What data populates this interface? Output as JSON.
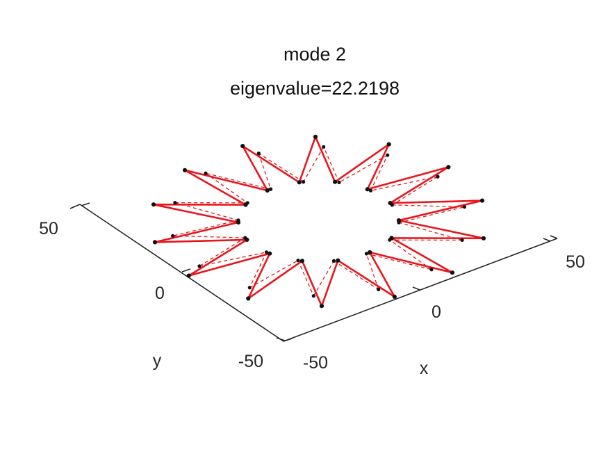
{
  "chart_data": {
    "type": "3d-line",
    "title": "mode 2",
    "subtitle": "eigenvalue=22.2198",
    "xlabel": "x",
    "ylabel": "y",
    "x_ticks": [
      "-50",
      "0",
      "50"
    ],
    "y_ticks": [
      "-50",
      "0",
      "50"
    ],
    "xlim": [
      -85,
      85
    ],
    "ylim": [
      -85,
      85
    ],
    "grid": false,
    "colors": {
      "deformed": "#e8161c",
      "undeformed": "#e8161c",
      "nodes": "#111111",
      "axes": "#262626"
    },
    "structure": {
      "spikes": 14,
      "outer_radius_undeformed": 74,
      "inner_radius_undeformed": 40,
      "outer_radius_deformed": 84,
      "inner_radius_deformed": 40,
      "rotation_deg": 3,
      "deformed_style": "solid",
      "undeformed_style": "dashed"
    }
  }
}
